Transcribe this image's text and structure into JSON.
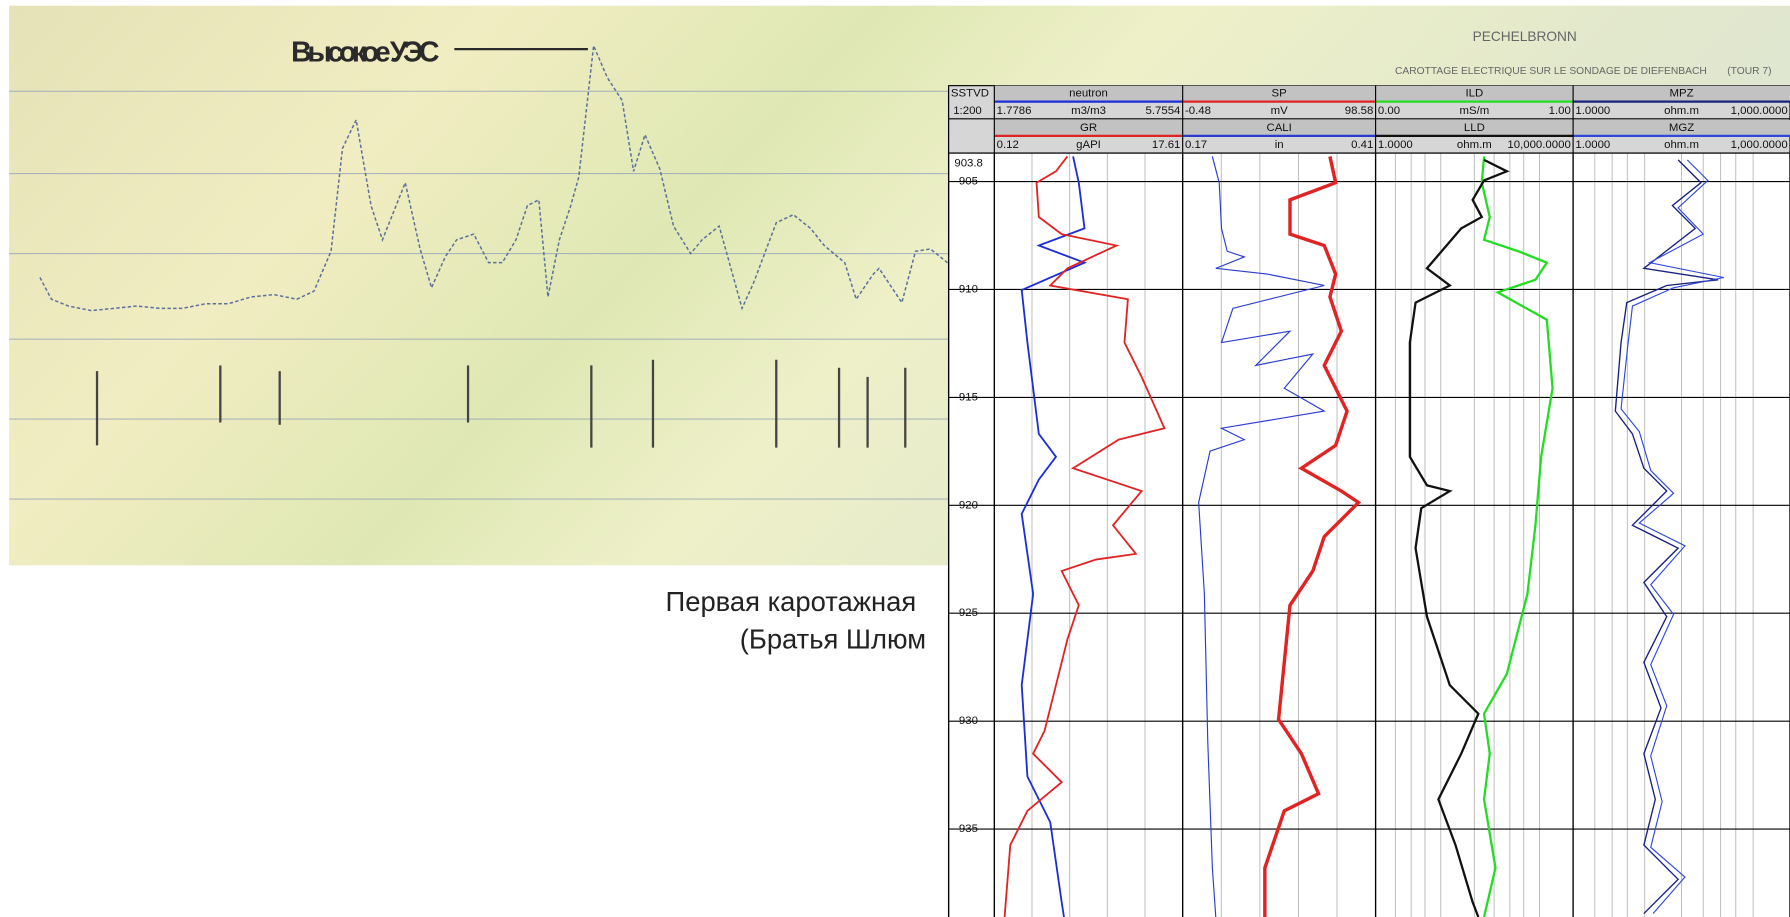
{
  "slide": {
    "label": "Высокое УЭС",
    "stamp": {
      "place": "PECHELBRONN",
      "line": "CAROTTAGE ELECTRIQUE SUR LE SONDAGE DE DIEFENBACH",
      "tour": "(TOUR 7)"
    },
    "caption": [
      "Первая каротажная",
      "(Братья Шлюм"
    ]
  },
  "log": {
    "depth_header": [
      "SSTVD",
      "1:200"
    ],
    "top_depth": 903.8,
    "depths": [
      905,
      910,
      915,
      920,
      925,
      930,
      935
    ],
    "tracks": [
      {
        "curves": [
          {
            "name": "neutron",
            "color": "#1c2fd6",
            "min": "1.7786",
            "unit": "m3/m3",
            "max": "5.7554"
          },
          {
            "name": "GR",
            "color": "#e02424",
            "min": "0.12",
            "unit": "gAPI",
            "max": "17.61"
          }
        ]
      },
      {
        "curves": [
          {
            "name": "SP",
            "color": "#e02424",
            "min": "-0.48",
            "unit": "mV",
            "max": "98.58"
          },
          {
            "name": "CALI",
            "color": "#2a3ccf",
            "min": "0.17",
            "unit": "in",
            "max": "0.41"
          }
        ]
      },
      {
        "curves": [
          {
            "name": "ILD",
            "color": "#22dd22",
            "min": "0.00",
            "unit": "mS/m",
            "max": "1.00"
          },
          {
            "name": "LLD",
            "color": "#111111",
            "min": "1.0000",
            "unit": "ohm.m",
            "max": "10,000.0000"
          }
        ]
      },
      {
        "curves": [
          {
            "name": "MPZ",
            "color": "#1a237e",
            "min": "1.0000",
            "unit": "ohm.m",
            "max": "1,000.0000"
          },
          {
            "name": "MGZ",
            "color": "#2f49d8",
            "min": "1.0000",
            "unit": "ohm.m",
            "max": "1,000.0000"
          }
        ]
      }
    ]
  }
}
